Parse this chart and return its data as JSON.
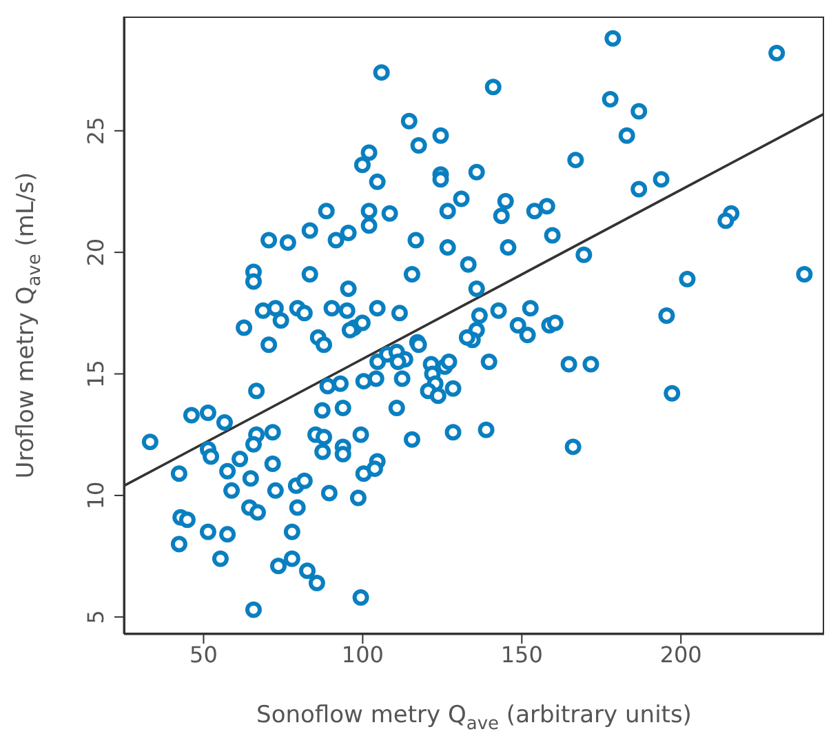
{
  "chart_data": {
    "type": "scatter",
    "xlabel": "Sonoflow metry Q$_{ave}$ (arbitrary units)",
    "ylabel": "Uroflow metry Q$_{ave}$ (mL/s)",
    "xlim": [
      25,
      245
    ],
    "ylim": [
      4.3,
      29.7
    ],
    "xticks": [
      50,
      100,
      150,
      200
    ],
    "yticks": [
      5,
      10,
      15,
      20,
      25
    ],
    "series": [
      {
        "marker": "circle",
        "color": "#0a7fc0",
        "x": [
          105.9,
          178.6,
          230.1,
          114.6,
          141.0,
          177.8,
          186.8,
          183.0,
          124.5,
          117.6,
          102.0,
          99.9,
          104.6,
          124.5,
          124.5,
          135.8,
          166.9,
          193.8,
          186.8,
          131.0,
          126.7,
          88.6,
          102.0,
          102.0,
          108.5,
          144.9,
          143.6,
          154.0,
          157.9,
          83.4,
          95.5,
          91.6,
          70.5,
          76.5,
          116.7,
          126.7,
          145.7,
          159.6,
          133.2,
          169.5,
          65.7,
          65.7,
          83.4,
          115.5,
          95.5,
          135.8,
          202.0,
          238.8,
          215.8,
          214.1,
          68.7,
          72.6,
          74.3,
          79.5,
          81.7,
          90.3,
          95.1,
          104.6,
          111.6,
          136.7,
          142.7,
          152.7,
          195.5,
          62.7,
          97.3,
          99.9,
          96.0,
          86.0,
          70.5,
          117.2,
          135.8,
          134.5,
          148.8,
          151.8,
          158.7,
          160.5,
          87.8,
          104.7,
          107.7,
          110.7,
          113.3,
          111.1,
          117.6,
          121.5,
          125.8,
          127.1,
          121.9,
          122.8,
          120.6,
          123.7,
          128.4,
          132.8,
          66.6,
          89.0,
          93.0,
          100.3,
          104.2,
          112.4,
          110.7,
          87.3,
          93.8,
          46.2,
          51.4,
          56.6,
          33.2,
          99.4,
          115.5,
          128.4,
          85.2,
          87.8,
          87.4,
          93.8,
          93.8,
          66.6,
          71.7,
          65.7,
          51.4,
          52.3,
          61.4,
          71.7,
          42.3,
          57.5,
          64.8,
          100.3,
          104.6,
          103.8,
          79.1,
          81.7,
          58.8,
          72.6,
          89.5,
          98.6,
          64.4,
          67.0,
          79.5,
          42.8,
          44.9,
          51.4,
          57.5,
          77.8,
          42.3,
          55.3,
          73.5,
          77.8,
          82.6,
          85.6,
          99.4,
          65.7,
          139.7,
          164.8,
          171.7,
          197.2,
          138.8,
          166.1
        ],
        "values": [
          27.4,
          28.8,
          28.2,
          25.4,
          26.8,
          26.3,
          25.8,
          24.8,
          24.8,
          24.4,
          24.1,
          23.6,
          22.9,
          23.2,
          23.0,
          23.3,
          23.8,
          23.0,
          22.6,
          22.2,
          21.7,
          21.7,
          21.7,
          21.1,
          21.6,
          22.1,
          21.5,
          21.7,
          21.9,
          20.9,
          20.8,
          20.5,
          20.5,
          20.4,
          20.5,
          20.2,
          20.2,
          20.7,
          19.5,
          19.9,
          19.2,
          18.8,
          19.1,
          19.1,
          18.5,
          18.5,
          18.9,
          19.1,
          21.6,
          21.3,
          17.6,
          17.7,
          17.2,
          17.7,
          17.5,
          17.7,
          17.6,
          17.7,
          17.5,
          17.4,
          17.6,
          17.7,
          17.4,
          16.9,
          16.9,
          17.1,
          16.8,
          16.5,
          16.2,
          16.3,
          16.8,
          16.4,
          17.0,
          16.6,
          17.0,
          17.1,
          16.2,
          15.5,
          15.8,
          15.9,
          15.6,
          15.5,
          16.2,
          15.4,
          15.3,
          15.5,
          15.0,
          14.6,
          14.3,
          14.1,
          14.4,
          16.5,
          14.3,
          14.5,
          14.6,
          14.7,
          14.8,
          14.8,
          13.6,
          13.5,
          13.6,
          13.3,
          13.4,
          13.0,
          12.2,
          12.5,
          12.3,
          12.6,
          12.5,
          12.4,
          11.8,
          12.0,
          11.7,
          12.5,
          12.6,
          12.1,
          11.9,
          11.6,
          11.5,
          11.3,
          10.9,
          11.0,
          10.7,
          10.9,
          11.4,
          11.1,
          10.4,
          10.6,
          10.2,
          10.2,
          10.1,
          9.9,
          9.5,
          9.3,
          9.5,
          9.1,
          9.0,
          8.5,
          8.4,
          8.5,
          8.0,
          7.4,
          7.1,
          7.4,
          6.9,
          6.4,
          5.8,
          5.3,
          15.5,
          15.4,
          15.4,
          14.2,
          12.7,
          12.0
        ]
      },
      {
        "type": "line",
        "color": "#333333",
        "x": [
          25,
          245
        ],
        "values": [
          10.4,
          25.7
        ]
      }
    ]
  }
}
